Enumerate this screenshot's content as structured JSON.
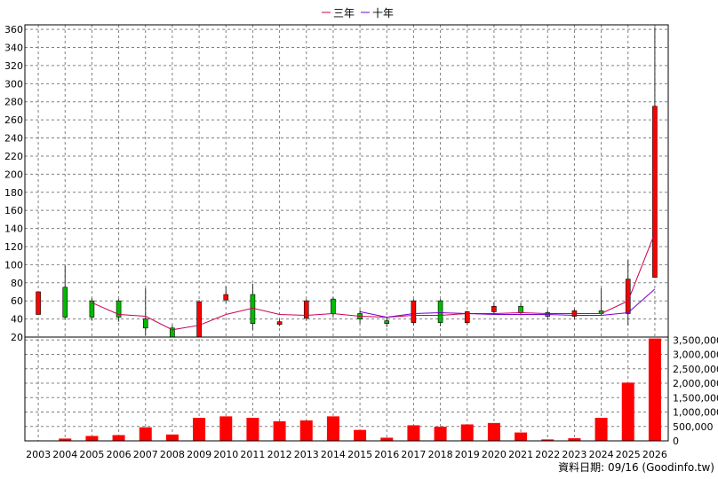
{
  "legend": {
    "three_year_label": "三年",
    "ten_year_label": "十年"
  },
  "credit": "資料日期: 09/16 (Goodinfo.tw)",
  "colors": {
    "up": "#ff0000",
    "down": "#00bb00",
    "volume": "#ff0000",
    "three_year_line": "#cc0055",
    "ten_year_line": "#7700cc",
    "grid": "#808080"
  },
  "chart_data": [
    {
      "type": "candlestick",
      "title": "",
      "grid": true,
      "legend_placement": "top-center",
      "ylim": [
        20,
        365
      ],
      "yticks": [
        20,
        40,
        60,
        80,
        100,
        120,
        140,
        160,
        180,
        200,
        220,
        240,
        260,
        280,
        300,
        320,
        340,
        360
      ],
      "categories": [
        "2003",
        "2004",
        "2005",
        "2006",
        "2007",
        "2008",
        "2009",
        "2010",
        "2011",
        "2012",
        "2013",
        "2014",
        "2015",
        "2016",
        "2017",
        "2018",
        "2019",
        "2020",
        "2021",
        "2022",
        "2023",
        "2024",
        "2025",
        "2026"
      ],
      "candles": [
        {
          "open": 45,
          "close": 70,
          "high": 70,
          "low": 45
        },
        {
          "open": 75,
          "close": 42,
          "high": 99,
          "low": 40
        },
        {
          "open": 60,
          "close": 42,
          "high": 63,
          "low": 38
        },
        {
          "open": 60,
          "close": 42,
          "high": 62,
          "low": 37
        },
        {
          "open": 40,
          "close": 30,
          "high": 74,
          "low": 22
        },
        {
          "open": 30,
          "close": 15,
          "high": 33,
          "low": 12
        },
        {
          "open": 17,
          "close": 59,
          "high": 61,
          "low": 14
        },
        {
          "open": 61,
          "close": 67,
          "high": 76,
          "low": 58
        },
        {
          "open": 67,
          "close": 35,
          "high": 79,
          "low": 28
        },
        {
          "open": 34,
          "close": 37,
          "high": 40,
          "low": 32
        },
        {
          "open": 41,
          "close": 60,
          "high": 62,
          "low": 38
        },
        {
          "open": 62,
          "close": 46,
          "high": 64,
          "low": 42
        },
        {
          "open": 46,
          "close": 40,
          "high": 50,
          "low": 35
        },
        {
          "open": 38,
          "close": 35,
          "high": 42,
          "low": 31
        },
        {
          "open": 36,
          "close": 60,
          "high": 62,
          "low": 33
        },
        {
          "open": 60,
          "close": 36,
          "high": 62,
          "low": 32
        },
        {
          "open": 36,
          "close": 48,
          "high": 49,
          "low": 34
        },
        {
          "open": 48,
          "close": 54,
          "high": 58,
          "low": 45
        },
        {
          "open": 54,
          "close": 47,
          "high": 57,
          "low": 44
        },
        {
          "open": 47,
          "close": 43,
          "high": 50,
          "low": 40
        },
        {
          "open": 43,
          "close": 49,
          "high": 51,
          "low": 40
        },
        {
          "open": 49,
          "close": 46,
          "high": 74,
          "low": 44
        },
        {
          "open": 46,
          "close": 84,
          "high": 105,
          "low": 33
        },
        {
          "open": 86,
          "close": 275,
          "high": 362,
          "low": 86
        }
      ],
      "series": [
        {
          "name": "三年",
          "values": [
            null,
            null,
            58,
            45,
            43,
            28,
            33,
            45,
            52,
            45,
            44,
            46,
            43,
            42,
            44,
            44,
            46,
            46,
            47,
            46,
            46,
            46,
            60,
            135
          ]
        },
        {
          "name": "十年",
          "values": [
            null,
            null,
            null,
            null,
            null,
            null,
            null,
            null,
            null,
            null,
            null,
            null,
            48,
            42,
            46,
            47,
            46,
            45,
            45,
            45,
            44,
            44,
            47,
            73
          ]
        }
      ]
    },
    {
      "type": "bar",
      "title": "",
      "grid": true,
      "ylim": [
        0,
        3600000
      ],
      "yticks": [
        0,
        500000,
        1000000,
        1500000,
        2000000,
        2500000,
        3000000,
        3500000
      ],
      "ytick_labels": [
        "0",
        "500,000",
        "1,000,000",
        "1,500,000",
        "2,000,000",
        "2,500,000",
        "3,000,000",
        "3,500,000"
      ],
      "categories": [
        "2003",
        "2004",
        "2005",
        "2006",
        "2007",
        "2008",
        "2009",
        "2010",
        "2011",
        "2012",
        "2013",
        "2014",
        "2015",
        "2016",
        "2017",
        "2018",
        "2019",
        "2020",
        "2021",
        "2022",
        "2023",
        "2024",
        "2025",
        "2026"
      ],
      "values": [
        5000,
        80000,
        170000,
        200000,
        470000,
        220000,
        800000,
        850000,
        800000,
        680000,
        710000,
        850000,
        380000,
        110000,
        540000,
        490000,
        570000,
        620000,
        290000,
        50000,
        90000,
        800000,
        2020000,
        3550000
      ]
    }
  ]
}
